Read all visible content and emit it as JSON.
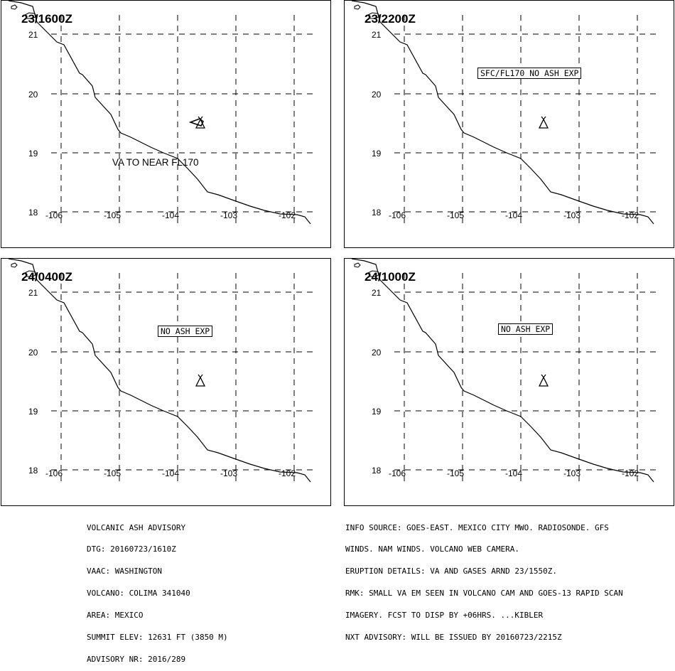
{
  "panels": [
    {
      "time_label": "23/1600Z",
      "box_text": null,
      "free_text": "VA TO NEAR FL170",
      "ash_polygon": true
    },
    {
      "time_label": "23/2200Z",
      "box_text": "SFC/FL170 NO ASH EXP",
      "free_text": null,
      "ash_polygon": false
    },
    {
      "time_label": "24/0400Z",
      "box_text": "NO ASH EXP",
      "free_text": null,
      "ash_polygon": false
    },
    {
      "time_label": "24/1000Z",
      "box_text": "NO ASH EXP",
      "free_text": null,
      "ash_polygon": false
    }
  ],
  "map_grid": {
    "lat_labels": [
      "21",
      "20",
      "19",
      "18"
    ],
    "lon_labels": [
      "-106",
      "-105",
      "-104",
      "-103",
      "-102"
    ]
  },
  "icons": {
    "volcano": "volcano-triangle-icon"
  },
  "advisory_left": [
    "VOLCANIC ASH ADVISORY",
    "DTG: 20160723/1610Z",
    "VAAC: WASHINGTON",
    "VOLCANO: COLIMA 341040",
    "AREA: MEXICO",
    "SUMMIT ELEV: 12631 FT (3850 M)",
    "ADVISORY NR: 2016/289"
  ],
  "advisory_right": [
    "INFO SOURCE: GOES-EAST. MEXICO CITY MWO. RADIOSONDE. GFS",
    "WINDS. NAM WINDS. VOLCANO WEB CAMERA.",
    "ERUPTION DETAILS: VA AND GASES ARND 23/1550Z.",
    "RMK: SMALL VA EM SEEN IN VOLCANO CAM AND GOES-13 RAPID SCAN",
    "IMAGERY. FCST TO DISP BY +06HRS. ...KIBLER",
    "NXT ADVISORY: WILL BE ISSUED BY 20160723/2215Z"
  ]
}
